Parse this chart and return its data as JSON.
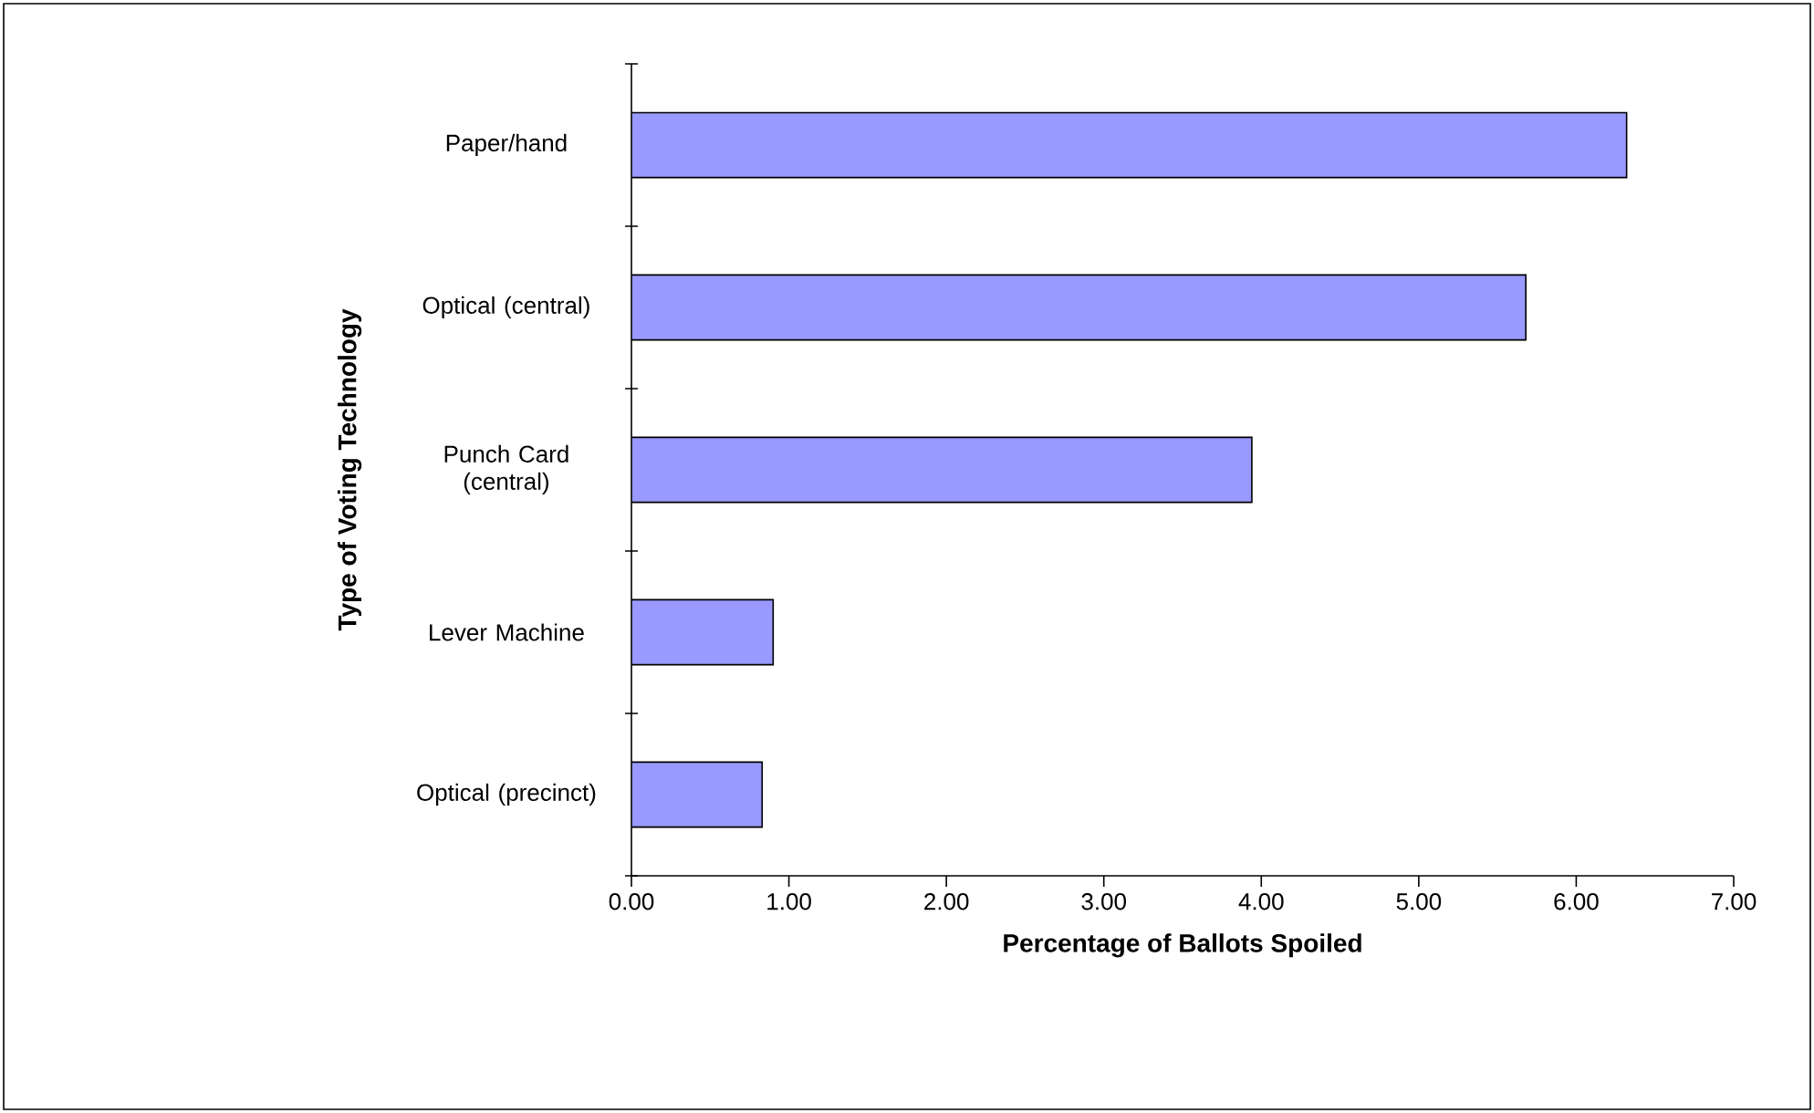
{
  "chart_data": {
    "type": "bar",
    "orientation": "horizontal",
    "xlabel": "Percentage of Ballots Spoiled",
    "ylabel": "Type of Voting Technology",
    "categories": [
      "Paper/hand",
      "Optical (central)",
      "Punch Card (central)",
      "Lever Machine",
      "Optical (precinct)"
    ],
    "values": [
      6.32,
      5.68,
      3.94,
      0.9,
      0.83
    ],
    "color": "#9999ff",
    "xlim": [
      0,
      7
    ],
    "xticks": [
      {
        "value": 0,
        "label": "0.00"
      },
      {
        "value": 1,
        "label": "1.00"
      },
      {
        "value": 2,
        "label": "2.00"
      },
      {
        "value": 3,
        "label": "3.00"
      },
      {
        "value": 4,
        "label": "4.00"
      },
      {
        "value": 5,
        "label": "5.00"
      },
      {
        "value": 6,
        "label": "6.00"
      },
      {
        "value": 7,
        "label": "7.00"
      }
    ],
    "grid": false
  }
}
